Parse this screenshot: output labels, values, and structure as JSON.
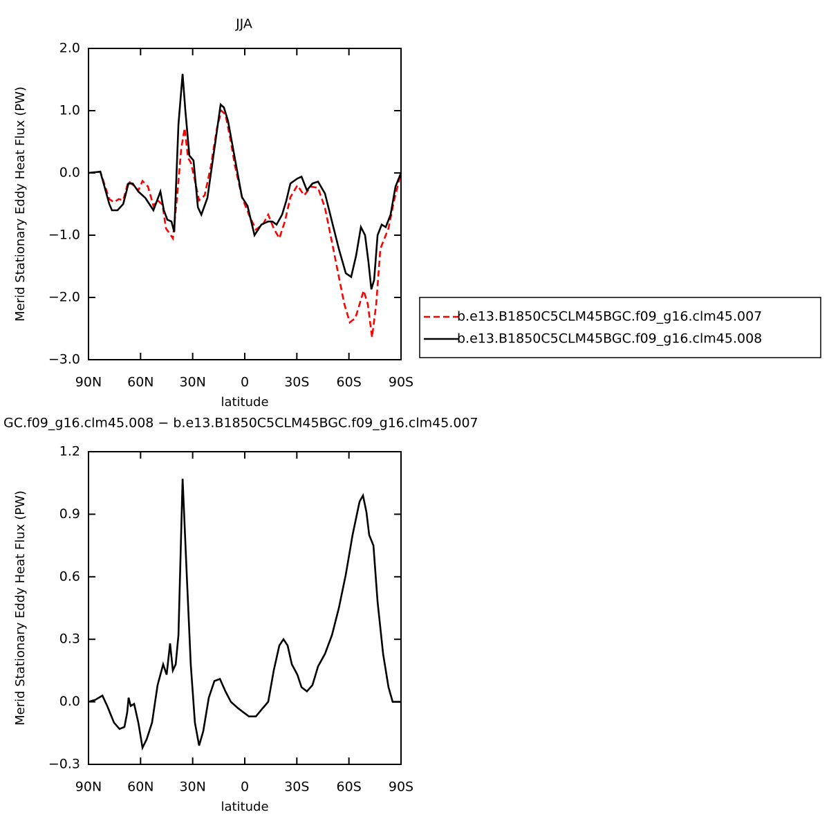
{
  "chart_data": [
    {
      "type": "line",
      "title": "JJA",
      "xlabel": "latitude",
      "ylabel": "Merid Stationary Eddy Heat Flux (PW)",
      "xlim": [
        90,
        -90
      ],
      "xticks": [
        {
          "value": 90,
          "label": "90N"
        },
        {
          "value": 60,
          "label": "60N"
        },
        {
          "value": 30,
          "label": "30N"
        },
        0,
        {
          "value": -30,
          "label": "30S"
        },
        {
          "value": -60,
          "label": "60S"
        },
        {
          "value": -90,
          "label": "90S"
        }
      ],
      "ylim": [
        -3.0,
        2.0
      ],
      "yticks": [
        {
          "value": 2.0,
          "label": "2.0"
        },
        {
          "value": 1.0,
          "label": "1.0"
        },
        {
          "value": 0,
          "label": "0.0"
        },
        {
          "value": -1.0,
          "label": "−1.0"
        },
        {
          "value": -2.0,
          "label": "−2.0"
        },
        {
          "value": -3.0,
          "label": "−3.0"
        }
      ],
      "legend": "right",
      "series": [
        {
          "name": "b.e13.B1850C5CLM45BGC.f09_g16.clm45.007",
          "color": "#ff0000",
          "dash": true,
          "x": [
            90,
            83.2,
            78,
            75.3,
            72.5,
            70,
            67,
            64.1,
            61.3,
            58.9,
            55.7,
            52.6,
            50.2,
            47.4,
            45.4,
            41.4,
            39,
            36.6,
            34.6,
            32.7,
            31.1,
            29.5,
            26.3,
            23.1,
            19.5,
            16,
            13.5,
            11.1,
            8,
            5.6,
            1.6,
            -2.4,
            -6.4,
            -10.4,
            -13.5,
            -16.7,
            -19.9,
            -23.1,
            -26.3,
            -30.3,
            -34.2,
            -38.2,
            -42.2,
            -46.2,
            -50.2,
            -54.2,
            -57.4,
            -60.5,
            -63.7,
            -66.1,
            -68.5,
            -70.9,
            -73.3,
            -75.7,
            -78.1,
            -80.5,
            -82.8,
            -86,
            -90
          ],
          "values": [
            0,
            0.02,
            -0.42,
            -0.47,
            -0.42,
            -0.44,
            -0.13,
            -0.2,
            -0.28,
            -0.13,
            -0.22,
            -0.53,
            -0.44,
            -0.51,
            -0.89,
            -1.05,
            -0.39,
            0.39,
            0.72,
            0.24,
            0.17,
            -0.02,
            -0.44,
            -0.36,
            0.11,
            0.72,
            1.0,
            0.94,
            0.5,
            0.11,
            -0.39,
            -0.67,
            -0.91,
            -0.83,
            -0.67,
            -0.89,
            -1.05,
            -0.78,
            -0.39,
            -0.2,
            -0.36,
            -0.22,
            -0.24,
            -0.56,
            -1.11,
            -1.67,
            -2.11,
            -2.4,
            -2.33,
            -2.11,
            -1.89,
            -2.11,
            -2.64,
            -2.11,
            -1.22,
            -1.05,
            -0.89,
            -0.44,
            0
          ]
        },
        {
          "name": "b.e13.B1850C5CLM45BGC.f09_g16.clm45.008",
          "color": "#000000",
          "dash": false,
          "x": [
            90,
            83.2,
            78,
            76.5,
            73.3,
            70,
            67,
            64.5,
            61.3,
            57.3,
            52.6,
            48.6,
            46.6,
            44.6,
            42.2,
            40.6,
            38.2,
            35.8,
            34.2,
            31.9,
            29.5,
            27,
            25,
            21.5,
            17.5,
            13.9,
            12,
            9.6,
            5.6,
            1.6,
            -1.6,
            -5.6,
            -9.6,
            -13.5,
            -15.9,
            -18.3,
            -21.5,
            -23.9,
            -26.3,
            -30.3,
            -32.7,
            -35.8,
            -39,
            -42.2,
            -46.2,
            -50.2,
            -54.2,
            -58.2,
            -61.3,
            -64.1,
            -66.9,
            -69.3,
            -71.3,
            -72.9,
            -74.5,
            -76.5,
            -78.9,
            -81.2,
            -84,
            -86.8,
            -90
          ],
          "values": [
            0,
            0.02,
            -0.5,
            -0.6,
            -0.6,
            -0.5,
            -0.17,
            -0.17,
            -0.3,
            -0.4,
            -0.6,
            -0.3,
            -0.6,
            -0.75,
            -0.78,
            -0.95,
            0.78,
            1.59,
            1.0,
            0.28,
            0.2,
            -0.55,
            -0.67,
            -0.4,
            0.39,
            1.1,
            1.05,
            0.83,
            0.22,
            -0.39,
            -0.53,
            -1.0,
            -0.83,
            -0.78,
            -0.78,
            -0.83,
            -0.67,
            -0.45,
            -0.17,
            -0.09,
            -0.06,
            -0.28,
            -0.17,
            -0.14,
            -0.33,
            -0.78,
            -1.22,
            -1.61,
            -1.67,
            -1.33,
            -0.87,
            -1.0,
            -1.44,
            -1.87,
            -1.72,
            -1.0,
            -0.83,
            -0.87,
            -0.67,
            -0.22,
            0
          ]
        }
      ]
    },
    {
      "type": "line",
      "title": "GC.f09_g16.clm45.008 − b.e13.B1850C5CLM45BGC.f09_g16.clm45.007",
      "xlabel": "latitude",
      "ylabel": "Merid Stationary Eddy Heat Flux (PW)",
      "xlim": [
        90,
        -90
      ],
      "xticks": [
        {
          "value": 90,
          "label": "90N"
        },
        {
          "value": 60,
          "label": "60N"
        },
        {
          "value": 30,
          "label": "30N"
        },
        0,
        {
          "value": -30,
          "label": "30S"
        },
        {
          "value": -60,
          "label": "60S"
        },
        {
          "value": -90,
          "label": "90S"
        }
      ],
      "ylim": [
        -0.3,
        1.2
      ],
      "yticks": [
        1.2,
        0.9,
        0.6,
        0.3,
        {
          "value": 0,
          "label": "0.0"
        },
        {
          "value": -0.3,
          "label": "−0.3"
        }
      ],
      "series": [
        {
          "color": "#000000",
          "dash": false,
          "x": [
            90,
            86,
            82,
            79.2,
            75.3,
            72.1,
            69.3,
            67.7,
            66.9,
            65.7,
            63.7,
            61.3,
            58.9,
            56.5,
            53.4,
            50.2,
            47,
            45,
            43,
            41.4,
            39.8,
            38.2,
            35.8,
            33.4,
            31.1,
            28.7,
            26.3,
            23.9,
            20.7,
            17.5,
            14.3,
            11.1,
            8,
            4,
            0.8,
            -2.4,
            -6.4,
            -10.4,
            -13.5,
            -16.7,
            -19.9,
            -22.3,
            -24.7,
            -27.1,
            -30.3,
            -32.7,
            -35.8,
            -39,
            -42.2,
            -46.2,
            -50.2,
            -54.2,
            -58.2,
            -62.1,
            -66.1,
            -68.1,
            -70.1,
            -71.7,
            -74.1,
            -76.5,
            -79.7,
            -82.8,
            -85.2,
            -90
          ],
          "values": [
            0,
            0.01,
            0.03,
            -0.02,
            -0.1,
            -0.13,
            -0.12,
            -0.05,
            0.02,
            -0.02,
            -0.01,
            -0.1,
            -0.22,
            -0.18,
            -0.1,
            0.08,
            0.18,
            0.13,
            0.28,
            0.15,
            0.18,
            0.32,
            1.07,
            0.61,
            0.18,
            -0.1,
            -0.21,
            -0.14,
            0.02,
            0.1,
            0.11,
            0.05,
            0,
            -0.03,
            -0.05,
            -0.07,
            -0.07,
            -0.03,
            0,
            0.15,
            0.27,
            0.3,
            0.27,
            0.18,
            0.13,
            0.07,
            0.05,
            0.08,
            0.17,
            0.23,
            0.32,
            0.45,
            0.61,
            0.8,
            0.96,
            0.99,
            0.91,
            0.8,
            0.75,
            0.48,
            0.23,
            0.07,
            0,
            0
          ]
        }
      ]
    }
  ]
}
